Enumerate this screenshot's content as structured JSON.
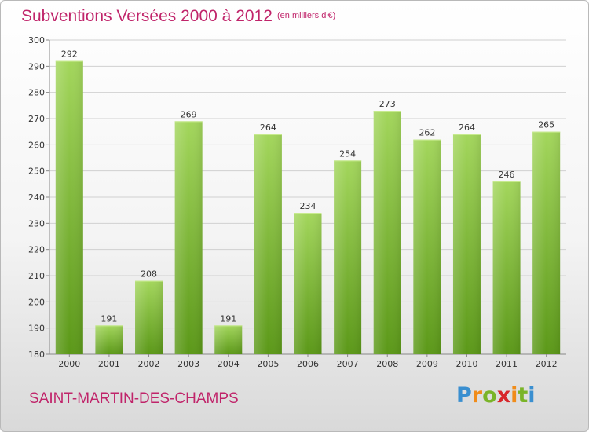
{
  "header": {
    "title": "Subventions Versées 2000 à 2012",
    "unit": "(en milliers d'€)"
  },
  "footer": {
    "town": "SAINT-MARTIN-DES-CHAMPS",
    "logo": "Proxiti"
  },
  "colors": {
    "accent": "#c0246a",
    "bar_light": "#9fd158",
    "bar_dark": "#5e9a1a",
    "grid": "#d0d0d0"
  },
  "chart_data": {
    "type": "bar",
    "title": "Subventions Versées 2000 à 2012",
    "subtitle": "(en milliers d'€)",
    "xlabel": "",
    "ylabel": "",
    "categories": [
      "2000",
      "2001",
      "2002",
      "2003",
      "2004",
      "2005",
      "2006",
      "2007",
      "2008",
      "2009",
      "2010",
      "2011",
      "2012"
    ],
    "values": [
      292,
      191,
      208,
      269,
      191,
      264,
      234,
      254,
      273,
      262,
      264,
      246,
      265
    ],
    "ylim": [
      180,
      300
    ],
    "yticks": [
      180,
      190,
      200,
      210,
      220,
      230,
      240,
      250,
      260,
      270,
      280,
      290,
      300
    ],
    "grid": true,
    "data_labels": true
  }
}
